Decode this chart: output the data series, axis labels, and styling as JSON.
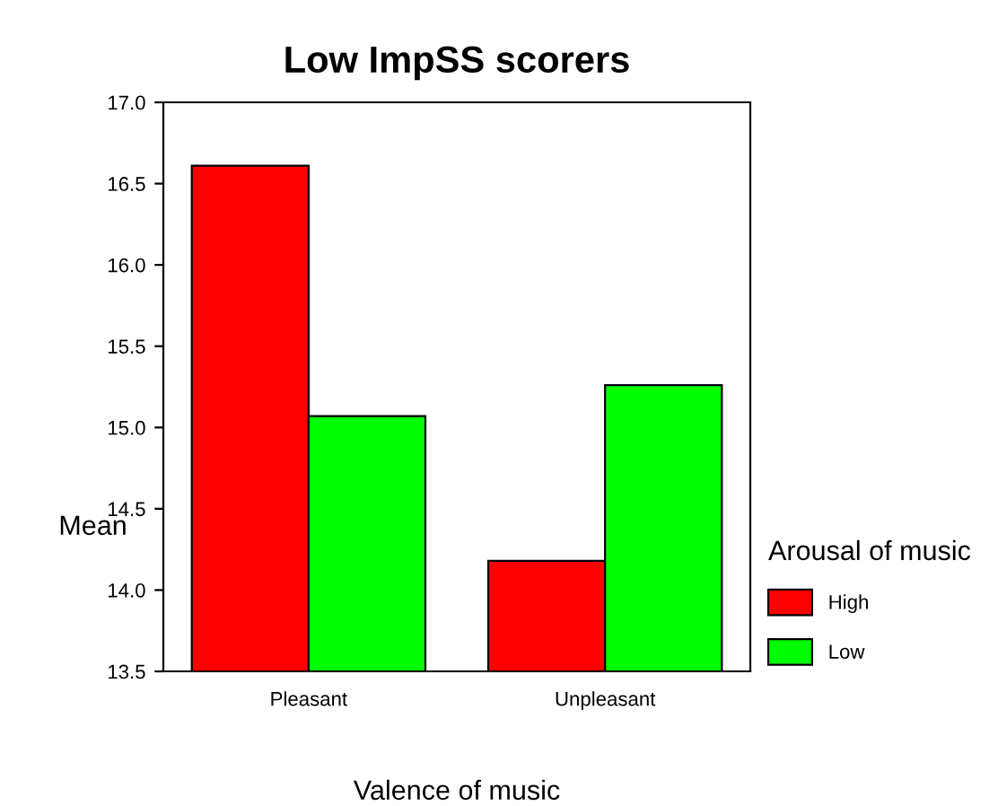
{
  "chart_data": {
    "type": "bar",
    "title": "Low ImpSS scorers",
    "xlabel": "Valence of music",
    "ylabel": "Mean",
    "legend_title": "Arousal of music",
    "categories": [
      "Pleasant",
      "Unpleasant"
    ],
    "series": [
      {
        "name": "High",
        "color": "#ff0000",
        "values": [
          16.61,
          14.18
        ]
      },
      {
        "name": "Low",
        "color": "#00ff00",
        "values": [
          15.07,
          15.26
        ]
      }
    ],
    "ylim": [
      13.5,
      17.0
    ],
    "yticks": [
      {
        "value": 13.5,
        "label": "13.5"
      },
      {
        "value": 14.0,
        "label": "14.0"
      },
      {
        "value": 14.5,
        "label": "14.5"
      },
      {
        "value": 15.0,
        "label": "15.0"
      },
      {
        "value": 15.5,
        "label": "15.5"
      },
      {
        "value": 16.0,
        "label": "16.0"
      },
      {
        "value": 16.5,
        "label": "16.5"
      },
      {
        "value": 17.0,
        "label": "17.0"
      }
    ],
    "grid": false,
    "legend": "right"
  }
}
